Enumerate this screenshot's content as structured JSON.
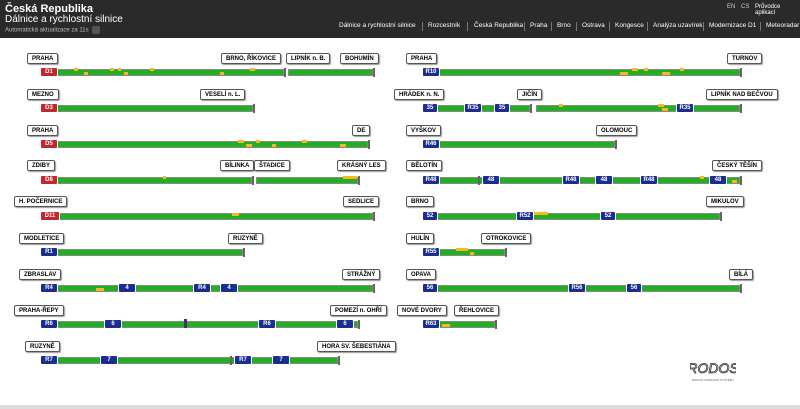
{
  "header": {
    "title": "Česká Republika",
    "subtitle": "Dálnice a rychlostní silnice",
    "refresh_text": "Automatická aktualizace za 11s",
    "languages": [
      "EN",
      "CS"
    ],
    "guide_label": "Průvodce aplikací"
  },
  "nav": [
    "Dálnice a rychlostní silnice",
    "Rozcestník",
    "Česká Republika",
    "Praha",
    "Brno",
    "Ostrava",
    "Kongesce",
    "Analýza uzavírek",
    "Modernizace D1",
    "Meteoradar"
  ],
  "colors": {
    "free_flow": "#22b022",
    "congestion": "#f6b91e",
    "motorway_badge": "#c1272d",
    "expressway_badge": "#1b2e8f",
    "header_bg": "#2a2a2a"
  },
  "roads_left": [
    {
      "code": "D1",
      "labels": [
        "PRAHA",
        "BRNO, ŘÍKOVICE",
        "LIPNÍK n. B.",
        "BOHUMÍN"
      ]
    },
    {
      "code": "D3",
      "labels": [
        "MEZNO",
        "VESELÍ n. L."
      ]
    },
    {
      "code": "D5",
      "labels": [
        "PRAHA",
        "DE"
      ]
    },
    {
      "code": "D8",
      "labels": [
        "ZDIBY",
        "BÍLINKA",
        "ŠTADICE",
        "KRÁSNÝ LES"
      ]
    },
    {
      "code": "D11",
      "labels": [
        "H. POČERNICE",
        "SEDLICE"
      ]
    },
    {
      "code": "R1",
      "labels": [
        "MODLETICE",
        "RUZYNĚ"
      ]
    },
    {
      "code": "R4",
      "mid_badges": [
        "4",
        "R4",
        "4"
      ],
      "labels": [
        "ZBRASLAV",
        "STRÁŽNÝ"
      ]
    },
    {
      "code": "R6",
      "mid_badges": [
        "6",
        "R6",
        "6"
      ],
      "labels": [
        "PRAHA-ŘEPY",
        "POMEZÍ n. OHŘÍ"
      ]
    },
    {
      "code": "R7",
      "mid_badges": [
        "7",
        "R7",
        "7"
      ],
      "labels": [
        "RUZYNĚ",
        "HORA SV. ŠEBESTIÁNA"
      ]
    }
  ],
  "roads_right": [
    {
      "code": "R10",
      "labels": [
        "PRAHA",
        "TURNOV"
      ]
    },
    {
      "code": "35",
      "mid_badges": [
        "R35",
        "35",
        "R35"
      ],
      "labels": [
        "HRÁDEK n. N.",
        "JIČÍN",
        "LIPNÍK NAD BEČVOU"
      ]
    },
    {
      "code": "R46",
      "labels": [
        "VYŠKOV",
        "OLOMOUC"
      ]
    },
    {
      "code": "R48",
      "mid_badges": [
        "48",
        "R48",
        "48",
        "R48",
        "48"
      ],
      "labels": [
        "BĚLOTÍN",
        "ČESKÝ TĚŠÍN"
      ]
    },
    {
      "code": "52",
      "mid_badges": [
        "R52",
        "52"
      ],
      "labels": [
        "BRNO",
        "MIKULOV"
      ]
    },
    {
      "code": "R55",
      "labels": [
        "HULÍN",
        "OTROKOVICE"
      ]
    },
    {
      "code": "56",
      "mid_badges": [
        "R56",
        "56"
      ],
      "labels": [
        "OPAVA",
        "BÍLÁ"
      ]
    },
    {
      "code": "R63",
      "labels": [
        "NOVÉ DVORY",
        "ŘEHLOVICE"
      ]
    }
  ],
  "logo": {
    "name": "RODOS",
    "tagline": "RODOS DOPRAVNÍ SYSTÉMY"
  }
}
